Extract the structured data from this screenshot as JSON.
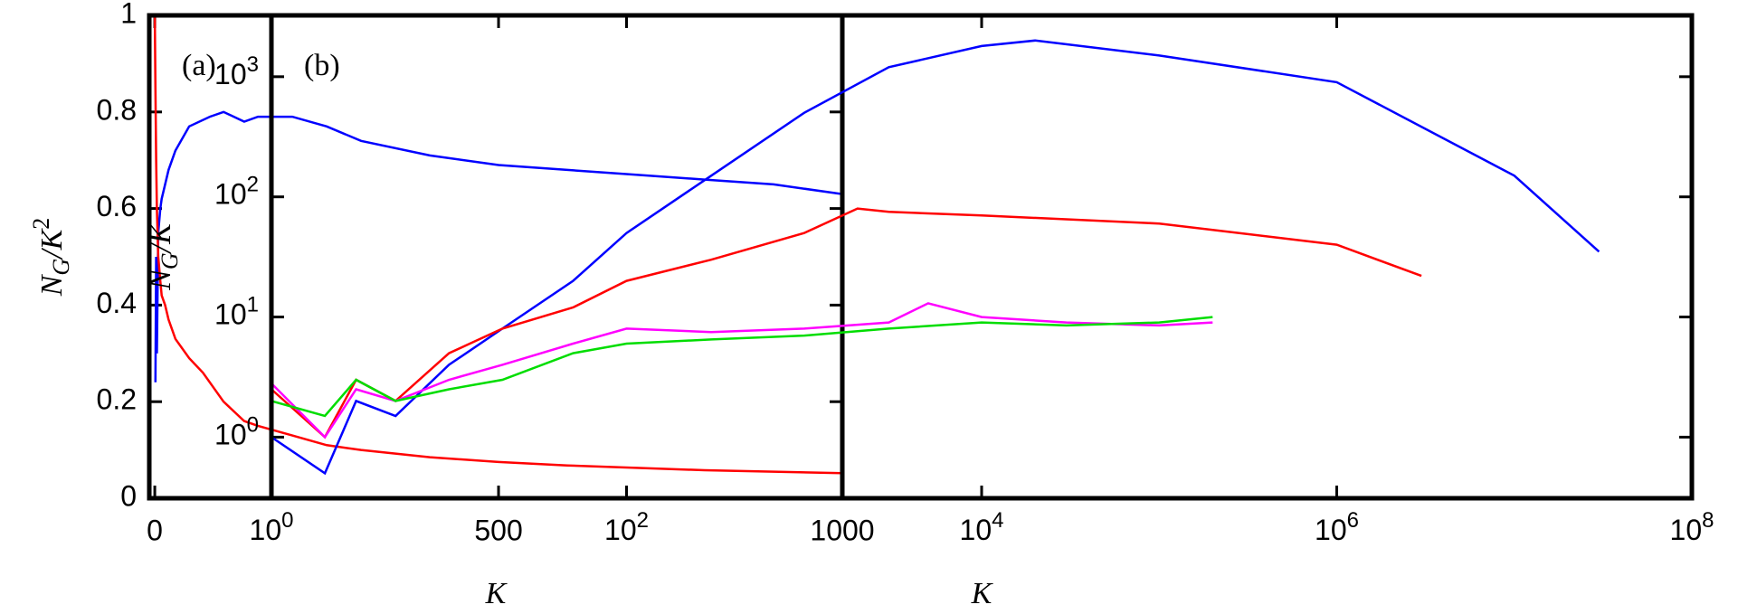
{
  "chart_data": [
    {
      "type": "line",
      "panel_label": "(a)",
      "xlabel": "K",
      "ylabel": [
        "N",
        "G",
        "/K",
        "2"
      ],
      "xlim": [
        -8,
        1000
      ],
      "ylim": [
        0,
        1
      ],
      "xticks": [
        0,
        500,
        1000
      ],
      "yticks": [
        0,
        0.2,
        0.4,
        0.6,
        0.8,
        1
      ],
      "xlog": false,
      "ylog": false,
      "series": [
        {
          "color": "#0000ff",
          "x": [
            1,
            2,
            3,
            5,
            8,
            10,
            15,
            20,
            30,
            50,
            80,
            100,
            130,
            150,
            200,
            250,
            300,
            400,
            500,
            600,
            700,
            800,
            900,
            1000
          ],
          "values": [
            0.24,
            0.5,
            0.3,
            0.55,
            0.6,
            0.62,
            0.65,
            0.68,
            0.72,
            0.77,
            0.79,
            0.8,
            0.78,
            0.79,
            0.79,
            0.77,
            0.74,
            0.71,
            0.69,
            0.68,
            0.67,
            0.66,
            0.65,
            0.63
          ]
        },
        {
          "color": "#ff0000",
          "x": [
            0,
            1,
            2,
            3,
            5,
            8,
            10,
            15,
            20,
            30,
            50,
            70,
            100,
            130,
            150,
            200,
            250,
            300,
            400,
            500,
            600,
            700,
            800,
            900,
            1000
          ],
          "values": [
            1,
            0.85,
            0.7,
            0.6,
            0.5,
            0.45,
            0.42,
            0.4,
            0.37,
            0.33,
            0.29,
            0.26,
            0.2,
            0.16,
            0.15,
            0.13,
            0.11,
            0.1,
            0.085,
            0.075,
            0.068,
            0.063,
            0.058,
            0.055,
            0.052
          ]
        }
      ]
    },
    {
      "type": "line",
      "panel_label": "(b)",
      "xlabel": "K",
      "ylabel": [
        "N",
        "G",
        "/K"
      ],
      "xlim": [
        1,
        100000000
      ],
      "ylim": [
        0.31,
        3240
      ],
      "xticks": [
        {
          "value": 1,
          "label": "10^0"
        },
        {
          "value": 100,
          "label": "10^2"
        },
        {
          "value": 10000,
          "label": "10^4"
        },
        {
          "value": 1000000,
          "label": "10^6"
        },
        {
          "value": 100000000,
          "label": "10^8"
        }
      ],
      "yticks": [
        {
          "value": 1,
          "label": "10^0"
        },
        {
          "value": 10,
          "label": "10^1"
        },
        {
          "value": 100,
          "label": "10^2"
        },
        {
          "value": 1000,
          "label": "10^3"
        }
      ],
      "xlog": true,
      "ylog": true,
      "series": [
        {
          "color": "#0000ff",
          "x": [
            1,
            2,
            3,
            5,
            10,
            20,
            50,
            100,
            300,
            1000,
            3000,
            10000,
            20000,
            100000,
            1000000,
            10000000,
            30000000
          ],
          "values": [
            1,
            0.5,
            2,
            1.5,
            4,
            8,
            20,
            50,
            150,
            500,
            1200,
            1800,
            2000,
            1500,
            900,
            150,
            35
          ]
        },
        {
          "color": "#ff0000",
          "x": [
            1,
            2,
            3,
            5,
            10,
            20,
            50,
            100,
            300,
            1000,
            2000,
            3000,
            10000,
            100000,
            1000000,
            3000000
          ],
          "values": [
            2.5,
            1,
            3,
            2,
            5,
            8,
            12,
            20,
            30,
            50,
            80,
            75,
            70,
            60,
            40,
            22
          ]
        },
        {
          "color": "#ff00ff",
          "x": [
            1,
            2,
            3,
            5,
            10,
            20,
            50,
            100,
            300,
            1000,
            3000,
            5000,
            10000,
            30000,
            100000,
            200000
          ],
          "values": [
            2.8,
            1,
            2.5,
            2,
            3,
            4,
            6,
            8,
            7.5,
            8,
            9,
            13,
            10,
            9,
            8.5,
            9
          ]
        },
        {
          "color": "#00dd00",
          "x": [
            1,
            2,
            3,
            5,
            10,
            20,
            50,
            100,
            300,
            1000,
            3000,
            10000,
            30000,
            100000,
            200000
          ],
          "values": [
            2,
            1.5,
            3,
            2,
            2.5,
            3,
            5,
            6,
            6.5,
            7,
            8,
            9,
            8.5,
            9,
            10
          ]
        }
      ]
    }
  ]
}
